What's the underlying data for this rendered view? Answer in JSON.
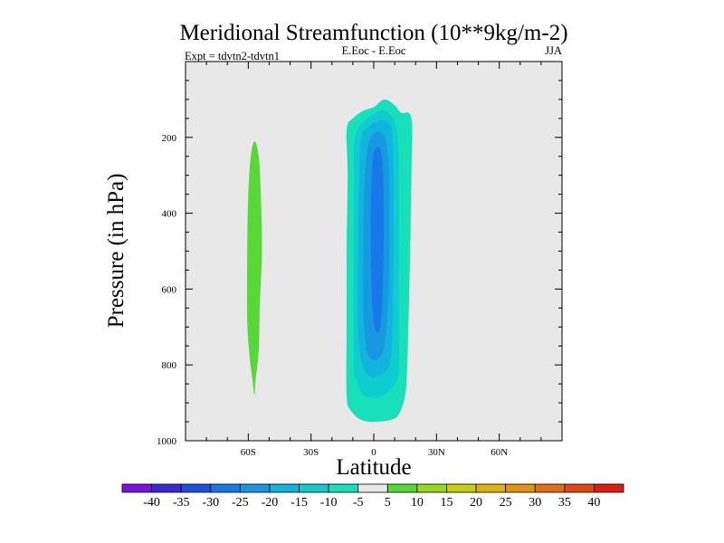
{
  "chart_data": {
    "type": "contour",
    "title": "Meridional Streamfunction (10**9kg/m-2)",
    "subtitle_left": "Expt = tdvtn2-tdvtn1",
    "subtitle_center": "E.Eoc - E.Eoc",
    "subtitle_right": "JJA",
    "xlabel": "Latitude",
    "ylabel": "Pressure (in hPa)",
    "xlim": [
      -90,
      90
    ],
    "ylim": [
      1000,
      0
    ],
    "x_ticks": [
      {
        "value": -60,
        "label": "60S"
      },
      {
        "value": -30,
        "label": "30S"
      },
      {
        "value": 0,
        "label": "0"
      },
      {
        "value": 30,
        "label": "30N"
      },
      {
        "value": 60,
        "label": "60N"
      }
    ],
    "y_ticks": [
      {
        "value": 200,
        "label": "200"
      },
      {
        "value": 400,
        "label": "400"
      },
      {
        "value": 600,
        "label": "600"
      },
      {
        "value": 800,
        "label": "800"
      },
      {
        "value": 1000,
        "label": "1000"
      }
    ],
    "plot_background": "#e8e8e8",
    "colorbar": {
      "levels": [
        "-40",
        "-35",
        "-30",
        "-25",
        "-20",
        "-15",
        "-10",
        "-5",
        "5",
        "10",
        "15",
        "20",
        "25",
        "30",
        "35",
        "40"
      ],
      "colors": [
        "#7a12e0",
        "#3a2ad8",
        "#2050e0",
        "#1878e8",
        "#1898e0",
        "#10b4dc",
        "#10ccd0",
        "#18e0b8",
        "#e8e8e8",
        "#58d838",
        "#98d820",
        "#c8d010",
        "#e0b410",
        "#e09410",
        "#e07010",
        "#e04810",
        "#e01c10"
      ]
    },
    "regions": [
      {
        "name": "positive-band-60s",
        "level": "5 to 10",
        "color": "#58d838",
        "boundary": [
          [
            -57,
            210
          ],
          [
            -55,
            250
          ],
          [
            -54,
            350
          ],
          [
            -53.5,
            500
          ],
          [
            -54.5,
            650
          ],
          [
            -55,
            760
          ],
          [
            -56.5,
            840
          ],
          [
            -57,
            880
          ],
          [
            -58,
            840
          ],
          [
            -59.5,
            770
          ],
          [
            -60.5,
            680
          ],
          [
            -60.5,
            500
          ],
          [
            -60,
            350
          ],
          [
            -58.8,
            250
          ]
        ]
      },
      {
        "name": "negative-cell-outer",
        "level": "-10 to -5",
        "color": "#18e0b8",
        "boundary": [
          [
            5,
            100
          ],
          [
            10,
            115
          ],
          [
            13,
            135
          ],
          [
            18,
            150
          ],
          [
            18,
            300
          ],
          [
            17,
            600
          ],
          [
            16,
            800
          ],
          [
            15,
            880
          ],
          [
            12,
            930
          ],
          [
            8,
            945
          ],
          [
            0,
            950
          ],
          [
            -6,
            945
          ],
          [
            -11,
            920
          ],
          [
            -13,
            880
          ],
          [
            -13,
            700
          ],
          [
            -13,
            500
          ],
          [
            -12.5,
            300
          ],
          [
            -13,
            180
          ],
          [
            -10,
            150
          ],
          [
            -5,
            130
          ],
          [
            0,
            120
          ]
        ]
      },
      {
        "name": "negative-cell-level2",
        "level": "-15 to -10",
        "color": "#10ccd0",
        "boundary": [
          [
            3,
            130
          ],
          [
            8,
            140
          ],
          [
            10,
            160
          ],
          [
            11.5,
            200
          ],
          [
            12,
            300
          ],
          [
            12,
            600
          ],
          [
            12,
            800
          ],
          [
            10,
            850
          ],
          [
            5,
            880
          ],
          [
            0,
            885
          ],
          [
            -5,
            880
          ],
          [
            -8,
            840
          ],
          [
            -9.5,
            800
          ],
          [
            -9.5,
            500
          ],
          [
            -9.5,
            300
          ],
          [
            -9,
            200
          ],
          [
            -5,
            160
          ]
        ]
      },
      {
        "name": "negative-cell-level3",
        "level": "-20 to -15",
        "color": "#10b4dc",
        "boundary": [
          [
            4,
            155
          ],
          [
            8,
            170
          ],
          [
            9,
            200
          ],
          [
            9.5,
            300
          ],
          [
            9.5,
            500
          ],
          [
            9,
            700
          ],
          [
            8,
            790
          ],
          [
            4,
            825
          ],
          [
            -2,
            830
          ],
          [
            -6,
            790
          ],
          [
            -7.5,
            700
          ],
          [
            -7.5,
            500
          ],
          [
            -7,
            300
          ],
          [
            -6,
            200
          ],
          [
            -2,
            170
          ]
        ]
      },
      {
        "name": "negative-cell-level4",
        "level": "-25 to -20",
        "color": "#1898e0",
        "boundary": [
          [
            4,
            190
          ],
          [
            6.5,
            230
          ],
          [
            7.5,
            350
          ],
          [
            7.5,
            500
          ],
          [
            6.8,
            650
          ],
          [
            5,
            750
          ],
          [
            2,
            785
          ],
          [
            -2,
            780
          ],
          [
            -4,
            740
          ],
          [
            -5,
            650
          ],
          [
            -5,
            500
          ],
          [
            -4.5,
            330
          ],
          [
            -3,
            230
          ],
          [
            0,
            190
          ]
        ]
      },
      {
        "name": "negative-cell-core",
        "level": "-30 to -25",
        "color": "#1878e8",
        "boundary": [
          [
            3,
            230
          ],
          [
            4.5,
            300
          ],
          [
            4.8,
            450
          ],
          [
            4.6,
            550
          ],
          [
            4,
            650
          ],
          [
            3,
            700
          ],
          [
            2,
            715
          ],
          [
            0,
            690
          ],
          [
            -1,
            600
          ],
          [
            -1.5,
            450
          ],
          [
            -1,
            300
          ],
          [
            0,
            240
          ]
        ]
      }
    ]
  }
}
